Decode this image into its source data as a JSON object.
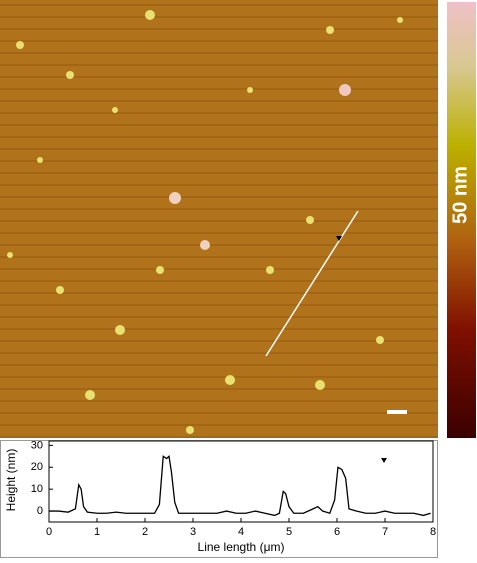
{
  "colorbar_label": "50 nm",
  "chart_data": {
    "type": "line",
    "xlabel": "Line length (μm)",
    "ylabel": "Height (nm)",
    "x": [
      0,
      0.2,
      0.4,
      0.55,
      0.62,
      0.67,
      0.72,
      0.8,
      1.0,
      1.2,
      1.4,
      1.6,
      1.8,
      2.0,
      2.2,
      2.3,
      2.38,
      2.45,
      2.5,
      2.55,
      2.62,
      2.7,
      2.9,
      3.1,
      3.3,
      3.5,
      3.7,
      3.9,
      4.1,
      4.3,
      4.5,
      4.7,
      4.8,
      4.88,
      4.93,
      5.0,
      5.1,
      5.3,
      5.5,
      5.6,
      5.7,
      5.85,
      5.95,
      6.02,
      6.1,
      6.18,
      6.25,
      6.4,
      6.6,
      6.8,
      7.0,
      7.2,
      7.4,
      7.6,
      7.8,
      7.95
    ],
    "series": [
      {
        "color": "#000000",
        "values": [
          0,
          0,
          -0.5,
          1,
          12,
          10,
          2,
          -0.5,
          -1,
          -1,
          -0.5,
          -1,
          -1,
          -1,
          -1,
          3,
          25,
          24,
          25,
          18,
          4,
          -1,
          -1,
          -1,
          -1,
          -1,
          0,
          -1,
          -1,
          0,
          -1,
          -2,
          -1,
          9,
          8,
          2,
          -1,
          -1,
          1,
          2,
          0,
          -1,
          5,
          20,
          19,
          15,
          1,
          0,
          -1,
          -1,
          0,
          -1,
          -1,
          -1,
          -2,
          -1
        ]
      }
    ],
    "xlim": [
      0,
      8
    ],
    "xticks": [
      0,
      1,
      2,
      3,
      4,
      5,
      6,
      7,
      8
    ],
    "ylim": [
      -5,
      32
    ],
    "yticks": [
      0,
      10,
      20,
      30
    ]
  }
}
